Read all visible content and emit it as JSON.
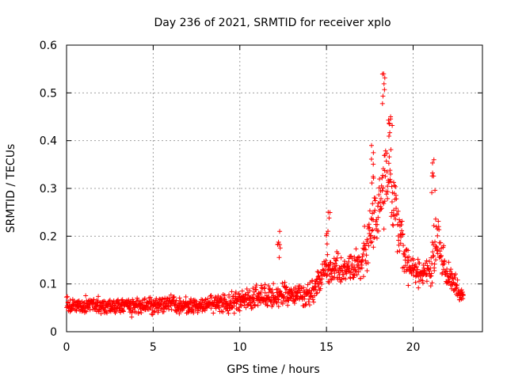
{
  "chart_data": {
    "type": "scatter",
    "title": "Day 236 of 2021, SRMTID for receiver xplo",
    "xlabel": "GPS time / hours",
    "ylabel": "SRMTID / TECUs",
    "xlim": [
      0,
      24
    ],
    "ylim": [
      0,
      0.6
    ],
    "x_ticks": [
      0,
      5,
      10,
      15,
      20
    ],
    "x_tick_labels": [
      "0",
      "5",
      "10",
      "15",
      "20"
    ],
    "y_ticks": [
      0,
      0.1,
      0.2,
      0.3,
      0.4,
      0.5,
      0.6
    ],
    "y_tick_labels": [
      "0",
      "0.1",
      "0.2",
      "0.3",
      "0.4",
      "0.5",
      "0.6"
    ],
    "grid": true,
    "marker": "+",
    "color": "#ff0000",
    "series": [
      {
        "name": "SRMTID",
        "x_start": 0,
        "x_end": 22.9,
        "approx_points": 1400,
        "envelope": [
          {
            "x": 0,
            "mean": 0.055,
            "spread": 0.025
          },
          {
            "x": 2,
            "mean": 0.055,
            "spread": 0.028
          },
          {
            "x": 4,
            "mean": 0.055,
            "spread": 0.028
          },
          {
            "x": 6,
            "mean": 0.058,
            "spread": 0.03
          },
          {
            "x": 8,
            "mean": 0.055,
            "spread": 0.03
          },
          {
            "x": 10,
            "mean": 0.065,
            "spread": 0.035
          },
          {
            "x": 12,
            "mean": 0.08,
            "spread": 0.045
          },
          {
            "x": 14,
            "mean": 0.075,
            "spread": 0.04
          },
          {
            "x": 15,
            "mean": 0.13,
            "spread": 0.06
          },
          {
            "x": 16,
            "mean": 0.13,
            "spread": 0.05
          },
          {
            "x": 17,
            "mean": 0.15,
            "spread": 0.06
          },
          {
            "x": 18,
            "mean": 0.25,
            "spread": 0.12
          },
          {
            "x": 18.6,
            "mean": 0.33,
            "spread": 0.18
          },
          {
            "x": 19.5,
            "mean": 0.16,
            "spread": 0.06
          },
          {
            "x": 20,
            "mean": 0.13,
            "spread": 0.05
          },
          {
            "x": 21,
            "mean": 0.12,
            "spread": 0.05
          },
          {
            "x": 21.3,
            "mean": 0.2,
            "spread": 0.12
          },
          {
            "x": 22,
            "mean": 0.12,
            "spread": 0.05
          },
          {
            "x": 22.9,
            "mean": 0.07,
            "spread": 0.03
          }
        ],
        "peak_values": [
          {
            "x": 18.3,
            "y": 0.54
          },
          {
            "x": 18.7,
            "y": 0.45
          },
          {
            "x": 17.6,
            "y": 0.39
          },
          {
            "x": 21.2,
            "y": 0.36
          },
          {
            "x": 12.3,
            "y": 0.21
          },
          {
            "x": 15.1,
            "y": 0.25
          }
        ]
      }
    ]
  }
}
